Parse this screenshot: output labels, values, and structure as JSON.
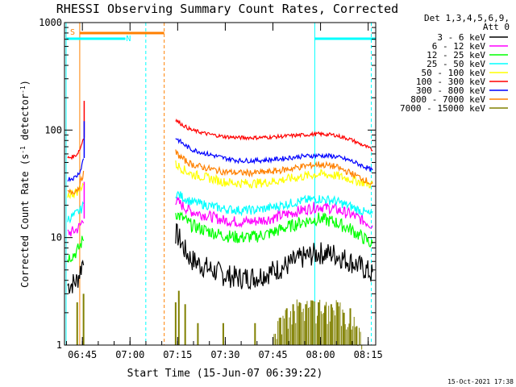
{
  "chart_data": {
    "type": "line",
    "title": "RHESSI Observing Summary Count Rates, Corrected",
    "ylabel": "Corrected Count Rate (s⁻¹ detector⁻¹)",
    "xlabel": "Start Time (15-Jun-07 06:39:22)",
    "yscale": "log",
    "ylim": [
      1,
      1000
    ],
    "xlim_minutes": [
      0,
      98
    ],
    "x_ticks": [
      "06:45",
      "07:00",
      "07:15",
      "07:30",
      "07:45",
      "08:00",
      "08:15"
    ],
    "y_ticks": [
      "1",
      "10",
      "100",
      "1000"
    ],
    "legend_header": [
      "Det 1,3,4,5,6,9,",
      "Att 0"
    ],
    "series": [
      {
        "name": "3 - 6 keV",
        "color": "#000000",
        "x": [
          1,
          3,
          4,
          5,
          6,
          35,
          36,
          38,
          40,
          45,
          50,
          55,
          60,
          65,
          70,
          75,
          80,
          85,
          90,
          95,
          97
        ],
        "y": [
          3.6,
          3.8,
          4,
          5,
          6.5,
          11,
          10,
          7.5,
          6.2,
          5.2,
          4.5,
          4.2,
          4.3,
          4.8,
          5.5,
          6.5,
          7.2,
          7,
          6,
          5,
          4.5
        ]
      },
      {
        "name": "6 - 12 keV",
        "color": "#ff00ff",
        "x": [
          1,
          3,
          4,
          5,
          6,
          35,
          36,
          38,
          40,
          45,
          50,
          55,
          60,
          65,
          70,
          75,
          80,
          85,
          90,
          95,
          97
        ],
        "y": [
          11,
          11.5,
          12,
          13,
          15,
          22,
          21,
          19,
          17.5,
          16,
          14.5,
          14,
          14.2,
          15,
          16.5,
          18,
          19.5,
          18.5,
          16.5,
          14,
          13
        ]
      },
      {
        "name": "12 - 25 keV",
        "color": "#00ff00",
        "x": [
          1,
          3,
          4,
          5,
          6,
          35,
          36,
          38,
          40,
          45,
          50,
          55,
          60,
          65,
          70,
          75,
          80,
          85,
          90,
          95,
          97
        ],
        "y": [
          6.5,
          7,
          7.5,
          8.5,
          10,
          17,
          16,
          14.5,
          13,
          11.5,
          10.5,
          10,
          10.2,
          11,
          12.5,
          14,
          15,
          14,
          12,
          9.5,
          8.5
        ]
      },
      {
        "name": "25 - 50 keV",
        "color": "#00ffff",
        "x": [
          1,
          3,
          4,
          5,
          6,
          35,
          36,
          38,
          40,
          45,
          50,
          55,
          60,
          65,
          70,
          75,
          80,
          85,
          90,
          95,
          97
        ],
        "y": [
          15,
          16,
          17,
          18,
          20,
          26,
          25,
          23,
          21.5,
          20,
          18.5,
          18,
          18,
          19,
          20.5,
          22,
          23,
          22,
          19.5,
          17,
          16
        ]
      },
      {
        "name": "50 - 100 keV",
        "color": "#ffff00",
        "x": [
          1,
          3,
          4,
          5,
          6,
          35,
          36,
          38,
          40,
          45,
          50,
          55,
          60,
          65,
          70,
          75,
          80,
          85,
          90,
          95,
          97
        ],
        "y": [
          25,
          26,
          27,
          29,
          32,
          48,
          46,
          42,
          39,
          36,
          33,
          32,
          32,
          33,
          35,
          37,
          39,
          38,
          35,
          32,
          31
        ]
      },
      {
        "name": "100 - 300 keV",
        "color": "#ff0000",
        "x": [
          1,
          3,
          4,
          5,
          6,
          35,
          36,
          38,
          40,
          45,
          50,
          55,
          60,
          65,
          70,
          75,
          80,
          85,
          90,
          95,
          97
        ],
        "y": [
          55,
          57,
          60,
          68,
          85,
          125,
          118,
          108,
          100,
          92,
          87,
          85,
          85,
          86,
          88,
          90,
          92,
          90,
          82,
          70,
          65
        ]
      },
      {
        "name": "300 - 800 keV",
        "color": "#0000ff",
        "x": [
          1,
          3,
          4,
          5,
          6,
          35,
          36,
          38,
          40,
          45,
          50,
          55,
          60,
          65,
          70,
          75,
          80,
          85,
          90,
          95,
          97
        ],
        "y": [
          35,
          36,
          38,
          42,
          55,
          85,
          80,
          72,
          66,
          60,
          55,
          52,
          52,
          53,
          55,
          57,
          58,
          57,
          52,
          45,
          42
        ]
      },
      {
        "name": "800 - 7000 keV",
        "color": "#ff8000",
        "x": [
          1,
          3,
          4,
          5,
          6,
          35,
          36,
          38,
          40,
          45,
          50,
          55,
          60,
          65,
          70,
          75,
          80,
          85,
          90,
          95,
          97
        ],
        "y": [
          26,
          27,
          28,
          32,
          40,
          62,
          58,
          52,
          48,
          44,
          41,
          40,
          40,
          41,
          43,
          46,
          48,
          46,
          40,
          34,
          31
        ]
      },
      {
        "name": "7000 - 15000 keV",
        "color": "#808000",
        "x": [
          1,
          4,
          5,
          6,
          35,
          36,
          38,
          40,
          42,
          45,
          50,
          55,
          60,
          65,
          68,
          70,
          72,
          74,
          76,
          78,
          80,
          82,
          84,
          86,
          88,
          90,
          92,
          95,
          97
        ],
        "y": [
          1,
          2.5,
          1,
          3,
          2.5,
          3.2,
          2.4,
          1,
          1.6,
          1,
          1.6,
          1,
          1.6,
          1,
          1.8,
          2.2,
          2.4,
          2.5,
          2.4,
          2.6,
          2.5,
          2.3,
          2.4,
          2.5,
          2,
          2.2,
          1.5,
          1,
          1
        ]
      }
    ],
    "flags": {
      "S_label": "S",
      "N_label": "N"
    },
    "footer_date": "15-Oct-2021 17:38"
  }
}
